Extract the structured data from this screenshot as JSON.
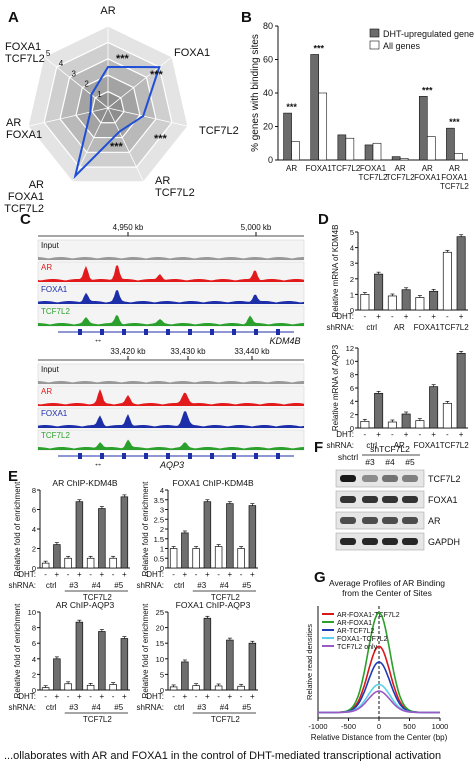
{
  "panels": {
    "A": {
      "label": "A",
      "axes": [
        "AR",
        "FOXA1",
        "TCF7L2",
        "AR\nTCF7L2",
        "AR\nFOXA1\nTCF7L2",
        "AR\nFOXA1",
        "FOXA1\nTCF7L2"
      ],
      "ring_labels": [
        "1",
        "2",
        "3",
        "4",
        "5"
      ],
      "stars": [
        "***",
        "***",
        "***",
        "***"
      ]
    },
    "B": {
      "label": "B",
      "ylabel": "% genes with binding sites",
      "yticks": [
        "0",
        "20",
        "40",
        "60",
        "80"
      ],
      "legend": [
        "DHT-upregulated genes",
        "All genes"
      ],
      "categories": [
        "AR",
        "FOXA1",
        "TCF7L2",
        "FOXA1\nTCF7L2",
        "AR\nTCF7L2",
        "AR\nFOXA1",
        "AR\nFOXA1\nTCF7L2"
      ]
    },
    "C": {
      "label": "C",
      "top": {
        "coords": [
          "4,950 kb",
          "5,000 kb"
        ],
        "gene": "KDM4B"
      },
      "bottom": {
        "coords": [
          "33,420 kb",
          "33,430 kb",
          "33,440 kb"
        ],
        "gene": "AQP3"
      },
      "tracks": [
        "Input",
        "AR",
        "FOXA1",
        "TCF7L2"
      ]
    },
    "D": {
      "label": "D",
      "top_ylabel": "Relative mRNA of KDM4B",
      "bottom_ylabel": "Relative mRNA of AQP3",
      "dht_label": "DHT:",
      "shrna_label": "shRNA:",
      "shrna": [
        "ctrl",
        "AR",
        "FOXA1",
        "TCF7L2"
      ],
      "dht_signs": [
        "-",
        "+",
        "-",
        "+",
        "-",
        "+",
        "-",
        "+"
      ]
    },
    "E": {
      "label": "E",
      "titles": [
        "AR ChIP-KDM4B",
        "FOXA1 ChIP-KDM4B",
        "AR ChIP-AQP3",
        "FOXA1 ChIP-AQP3"
      ],
      "ylabel": "Relative fold of enrichment",
      "dht_label": "DHT:",
      "shrna_label": "shRNA:",
      "dht_signs": [
        "-",
        "+",
        "-",
        "+",
        "-",
        "+",
        "-",
        "+"
      ],
      "shrna_groups": [
        "ctrl",
        "#3",
        "#4",
        "#5"
      ],
      "shrna_parent": "TCF7L2"
    },
    "F": {
      "label": "F",
      "lane_header": [
        "shctrl",
        "shTCF7L2"
      ],
      "lanes": [
        "#3",
        "#4",
        "#5"
      ],
      "bands": [
        "TCF7L2",
        "FOXA1",
        "AR",
        "GAPDH"
      ]
    },
    "G": {
      "label": "G",
      "title": "Average Profiles of AR Binding\nfrom the Center of Sites",
      "ylabel": "Relative read densities",
      "xlabel": "Relative Distance from the Center (bp)",
      "xticks": [
        "-1000",
        "-500",
        "0",
        "500",
        "1000"
      ]
    }
  },
  "caption": "...ollaborates with AR and FOXA1 in the control of DHT-mediated transcriptional activation",
  "chart_data": [
    {
      "type": "radar",
      "id": "A",
      "categories": [
        "AR",
        "FOXA1",
        "TCF7L2",
        "AR TCF7L2",
        "AR FOXA1 TCF7L2",
        "AR FOXA1",
        "FOXA1 TCF7L2"
      ],
      "series": [
        {
          "values": [
            2.5,
            4.0,
            2.2,
            1.6,
            4.6,
            1.1,
            1.3
          ]
        }
      ],
      "ylim": [
        0,
        5
      ]
    },
    {
      "type": "bar",
      "id": "B",
      "categories": [
        "AR",
        "FOXA1",
        "TCF7L2",
        "FOXA1 TCF7L2",
        "AR TCF7L2",
        "AR FOXA1",
        "AR FOXA1 TCF7L2"
      ],
      "series": [
        {
          "name": "DHT-upregulated genes",
          "values": [
            28,
            63,
            15,
            9,
            2,
            38,
            19
          ]
        },
        {
          "name": "All genes",
          "values": [
            11,
            40,
            13,
            10,
            1,
            14,
            4
          ]
        }
      ],
      "stars": [
        "***",
        "***",
        "",
        "",
        "",
        "***",
        "***"
      ],
      "ylim": [
        0,
        80
      ]
    },
    {
      "type": "bar",
      "id": "D-top",
      "categories": [
        "ctrl -",
        "ctrl +",
        "AR -",
        "AR +",
        "FOXA1 -",
        "FOXA1 +",
        "TCF7L2 -",
        "TCF7L2 +"
      ],
      "values": [
        1.0,
        2.3,
        0.9,
        1.3,
        0.8,
        1.2,
        3.7,
        4.7
      ],
      "ylim": [
        0,
        5
      ],
      "yticks": [
        0,
        1,
        2,
        3,
        4,
        5
      ]
    },
    {
      "type": "bar",
      "id": "D-bottom",
      "categories": [
        "ctrl -",
        "ctrl +",
        "AR -",
        "AR +",
        "FOXA1 -",
        "FOXA1 +",
        "TCF7L2 -",
        "TCF7L2 +"
      ],
      "values": [
        1.0,
        5.2,
        0.9,
        2.1,
        1.1,
        6.2,
        3.7,
        11.2
      ],
      "ylim": [
        0,
        12
      ],
      "yticks": [
        0,
        2,
        4,
        6,
        8,
        10,
        12
      ]
    },
    {
      "type": "bar",
      "id": "E-1",
      "values": [
        0.5,
        2.4,
        1.0,
        6.8,
        1.0,
        6.1,
        1.0,
        7.3
      ],
      "ylim": [
        0,
        8
      ],
      "yticks": [
        0,
        2,
        4,
        6,
        8
      ]
    },
    {
      "type": "bar",
      "id": "E-2",
      "values": [
        1.0,
        1.8,
        1.0,
        3.4,
        1.1,
        3.3,
        1.0,
        3.2
      ],
      "ylim": [
        0,
        4
      ],
      "yticks": [
        0,
        0.5,
        1,
        1.5,
        2,
        2.5,
        3,
        3.5,
        4
      ]
    },
    {
      "type": "bar",
      "id": "E-3",
      "values": [
        0.3,
        4.0,
        0.8,
        8.7,
        0.6,
        7.5,
        0.7,
        6.6
      ],
      "ylim": [
        0,
        10
      ],
      "yticks": [
        0,
        2,
        4,
        6,
        8,
        10
      ]
    },
    {
      "type": "bar",
      "id": "E-4",
      "values": [
        1.0,
        9.0,
        1.4,
        23.0,
        1.3,
        16.0,
        1.2,
        15.0
      ],
      "ylim": [
        0,
        25
      ],
      "yticks": [
        0,
        5,
        10,
        15,
        20,
        25
      ]
    },
    {
      "type": "line",
      "id": "G",
      "series": [
        {
          "name": "AR-FOXA1-TCF7L2",
          "color": "#d7191c",
          "peak": 0.64
        },
        {
          "name": "AR-FOXA1",
          "color": "#2ca02c",
          "peak": 0.94
        },
        {
          "name": "AR-TCF7L2",
          "color": "#1f3cb4",
          "peak": 0.5
        },
        {
          "name": "FOXA1-TCF7L2",
          "color": "#5ad0ea",
          "peak": 0.3
        },
        {
          "name": "TCF7L2 only",
          "color": "#9b59c4",
          "peak": 0.24
        }
      ],
      "xlim": [
        -1000,
        1000
      ]
    }
  ]
}
